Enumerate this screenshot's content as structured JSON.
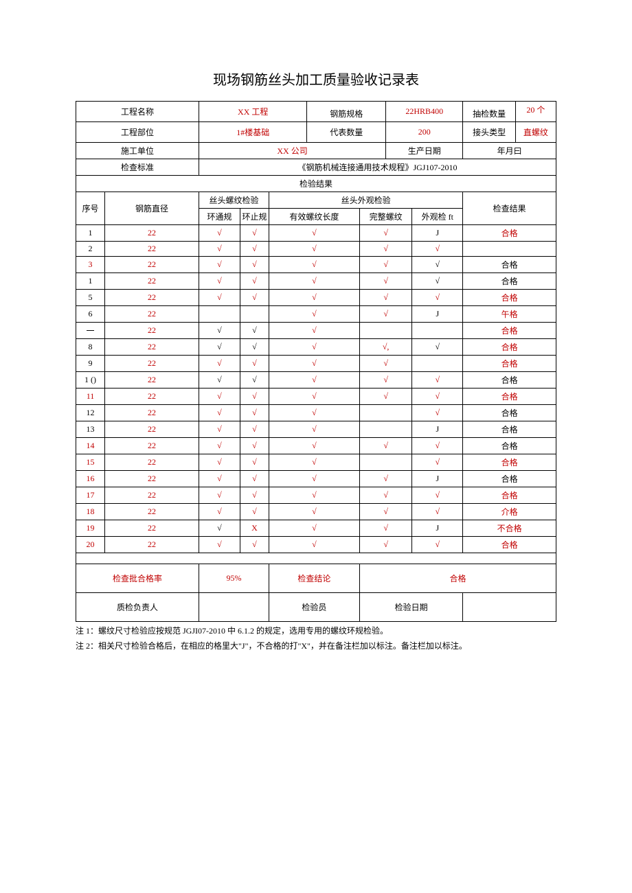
{
  "title": "现场钢筋丝头加工质量验收记录表",
  "header": {
    "project_name_label": "工程名称",
    "project_name_value": "XX 工程",
    "rebar_spec_label": "钢筋规格",
    "rebar_spec_value": "22HRB400",
    "sample_qty_label": "抽检数量",
    "sample_qty_value": "20 个",
    "project_part_label": "工程部位",
    "project_part_value": "1#楼基础",
    "rep_qty_label": "代表数量",
    "rep_qty_value": "200",
    "joint_type_label": "接头类型",
    "joint_type_value": "直螺纹",
    "construction_unit_label": "施工单位",
    "construction_unit_value": "XX 公司",
    "prod_date_label": "生产日期",
    "prod_date_value": "年月曰",
    "check_standard_label": "检查标准",
    "check_standard_value": "《钢筋机械连接通用技术规程》JGJ107-2010",
    "inspection_results_label": "检验结果"
  },
  "columns": {
    "seq": "序号",
    "diameter": "钢筋直径",
    "thread_check": "丝头螺纹检验",
    "ring_go": "环通规",
    "ring_stop": "环止规",
    "appearance_check": "丝头外观检验",
    "eff_len": "有效螺纹长度",
    "complete": "完整螺纹",
    "visual": "外观检 ft",
    "result": "检查结果"
  },
  "rows": [
    {
      "seq": "1",
      "dia": "22",
      "go": "√",
      "stop": "√",
      "eff": "√",
      "comp": "√",
      "vis": "J",
      "res": "合格",
      "seq_red": false,
      "res_red": true,
      "vis_red": false
    },
    {
      "seq": "2",
      "dia": "22",
      "go": "√",
      "stop": "√",
      "eff": "√",
      "comp": "√",
      "vis": "√",
      "res": "",
      "seq_red": false,
      "res_red": false,
      "vis_red": true
    },
    {
      "seq": "3",
      "dia": "22",
      "go": "√",
      "stop": "√",
      "eff": "√",
      "comp": "√",
      "vis": "√",
      "res": "合格",
      "seq_red": true,
      "res_red": false,
      "vis_red": false
    },
    {
      "seq": "1",
      "dia": "22",
      "go": "√",
      "stop": "√",
      "eff": "√",
      "comp": "√",
      "vis": "√",
      "res": "合格",
      "seq_red": false,
      "res_red": false,
      "vis_red": false
    },
    {
      "seq": "5",
      "dia": "22",
      "go": "√",
      "stop": "√",
      "eff": "√",
      "comp": "√",
      "vis": "√",
      "res": "合格",
      "seq_red": false,
      "res_red": true,
      "vis_red": true
    },
    {
      "seq": "6",
      "dia": "22",
      "go": "",
      "stop": "",
      "eff": "√",
      "comp": "√",
      "vis": "J",
      "res": "午格",
      "seq_red": false,
      "res_red": true,
      "vis_red": false
    },
    {
      "seq": "一",
      "dia": "22",
      "go": "√",
      "stop": "√",
      "eff": "√",
      "comp": "",
      "vis": "",
      "res": "合格",
      "seq_red": false,
      "res_red": true,
      "vis_red": false,
      "go_black": true,
      "stop_black": true
    },
    {
      "seq": "8",
      "dia": "22",
      "go": "√",
      "stop": "√",
      "eff": "√",
      "comp": "√,",
      "vis": "√",
      "res": "合格",
      "seq_red": false,
      "res_red": true,
      "vis_red": false,
      "go_black": true,
      "stop_black": true
    },
    {
      "seq": "9",
      "dia": "22",
      "go": "√",
      "stop": "√",
      "eff": "√",
      "comp": "√",
      "vis": "",
      "res": "合格",
      "seq_red": false,
      "res_red": true,
      "vis_red": false
    },
    {
      "seq": "1 ()",
      "dia": "22",
      "go": "√",
      "stop": "√",
      "eff": "√",
      "comp": "√",
      "vis": "√",
      "res": "合格",
      "seq_red": false,
      "res_red": false,
      "vis_red": true,
      "go_black": true,
      "stop_black": true
    },
    {
      "seq": "11",
      "dia": "22",
      "go": "√",
      "stop": "√",
      "eff": "√",
      "comp": "√",
      "vis": "√",
      "res": "合格",
      "seq_red": true,
      "res_red": true,
      "vis_red": true
    },
    {
      "seq": "12",
      "dia": "22",
      "go": "√",
      "stop": "√",
      "eff": "√",
      "comp": "",
      "vis": "√",
      "res": "合格",
      "seq_red": false,
      "res_red": false,
      "vis_red": true
    },
    {
      "seq": "13",
      "dia": "22",
      "go": "√",
      "stop": "√",
      "eff": "√",
      "comp": "",
      "vis": "J",
      "res": "合格",
      "seq_red": false,
      "res_red": false,
      "vis_red": false
    },
    {
      "seq": "14",
      "dia": "22",
      "go": "√",
      "stop": "√",
      "eff": "√",
      "comp": "√",
      "vis": "√",
      "res": "合格",
      "seq_red": true,
      "res_red": false,
      "vis_red": true
    },
    {
      "seq": "15",
      "dia": "22",
      "go": "√",
      "stop": "√",
      "eff": "√",
      "comp": "",
      "vis": "√",
      "res": "合格",
      "seq_red": true,
      "res_red": true,
      "vis_red": true
    },
    {
      "seq": "16",
      "dia": "22",
      "go": "√",
      "stop": "√",
      "eff": "√",
      "comp": "√",
      "vis": "J",
      "res": "合格",
      "seq_red": true,
      "res_red": false,
      "vis_red": false
    },
    {
      "seq": "17",
      "dia": "22",
      "go": "√",
      "stop": "√",
      "eff": "√",
      "comp": "√",
      "vis": "√",
      "res": "合格",
      "seq_red": true,
      "res_red": true,
      "vis_red": true
    },
    {
      "seq": "18",
      "dia": "22",
      "go": "√",
      "stop": "√",
      "eff": "√",
      "comp": "√",
      "vis": "√",
      "res": "介格",
      "seq_red": true,
      "res_red": true,
      "vis_red": true
    },
    {
      "seq": "19",
      "dia": "22",
      "go": "√",
      "stop": "X",
      "eff": "√",
      "comp": "√",
      "vis": "J",
      "res": "不合格",
      "seq_red": true,
      "res_red": true,
      "vis_red": false,
      "go_black": true
    },
    {
      "seq": "20",
      "dia": "22",
      "go": "√",
      "stop": "√",
      "eff": "√",
      "comp": "√",
      "vis": "√",
      "res": "合格",
      "seq_red": true,
      "res_red": true,
      "vis_red": true
    }
  ],
  "footer": {
    "pass_rate_label": "检查批合格率",
    "pass_rate_value": "95%",
    "conclusion_label": "检查结论",
    "conclusion_value": "合格",
    "qc_label": "质检负责人",
    "inspector_label": "检验员",
    "check_date_label": "检验日期"
  },
  "notes": {
    "note1": "注 1：螺纹尺寸检验应按规范 JGJI07-2010 中 6.1.2 的规定，选用专用的螺纹环规检验。",
    "note2": "注 2：相关尺寸检验合格后，在相应的格里大\"J\"，不合格的打\"X\"，并在备注栏加以标注。备注栏加以标注。"
  },
  "colors": {
    "red": "#c00000",
    "black": "#000000"
  }
}
